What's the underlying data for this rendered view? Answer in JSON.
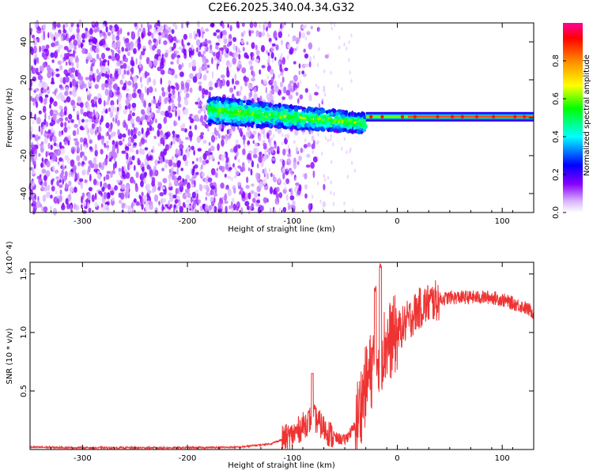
{
  "title": "C2E6.2025.340.04.34.G32",
  "chart_data": [
    {
      "type": "heatmap",
      "xlabel": "Height of straight line (km)",
      "ylabel": "Frequency (Hz)",
      "xlim": [
        -350,
        130
      ],
      "ylim": [
        -50,
        50
      ],
      "xticks": [
        -300,
        -200,
        -100,
        0,
        100
      ],
      "yticks": [
        -40,
        -20,
        0,
        20,
        40
      ],
      "grid": false,
      "colorbar": {
        "label": "Normalized spectral amplitude",
        "range": [
          0.0,
          1.0
        ],
        "ticks": [
          "0.0",
          "0.2",
          "0.4",
          "0.6",
          "0.8"
        ],
        "colormap": [
          "#ffffff",
          "#d9b3ff",
          "#8800ff",
          "#0000ff",
          "#00ffff",
          "#00ff00",
          "#ffff00",
          "#ff8800",
          "#ff0000",
          "#ff00aa"
        ]
      },
      "features": {
        "noise_region_x": [
          -350,
          -125
        ],
        "broad_band_x": [
          -180,
          -30
        ],
        "broad_band_center_hz": [
          4,
          -6
        ],
        "narrow_line_x": [
          -30,
          130
        ],
        "narrow_line_center_hz": 0.5,
        "narrow_line_peak": 0.9
      }
    },
    {
      "type": "line",
      "xlabel": "Height of straight line (km)",
      "ylabel": "SNR (10 * v/v)",
      "y_multiplier": "(x10^4)",
      "xlim": [
        -350,
        130
      ],
      "ylim": [
        0,
        1.6
      ],
      "xticks": [
        -300,
        -200,
        -100,
        0,
        100
      ],
      "yticks": [
        0.5,
        1.0,
        1.5
      ],
      "grid": false,
      "color": "#ee3333",
      "series": [
        {
          "x": [
            -350,
            -300,
            -250,
            -200,
            -150,
            -120,
            -100,
            -90,
            -80,
            -70,
            -60,
            -50,
            -40,
            -30,
            -20,
            -10,
            0,
            10,
            20,
            30,
            40,
            50,
            60,
            70,
            80,
            90,
            100,
            110,
            120,
            130
          ],
          "values": [
            0.02,
            0.015,
            0.015,
            0.015,
            0.02,
            0.05,
            0.12,
            0.2,
            0.28,
            0.18,
            0.1,
            0.08,
            0.2,
            0.55,
            0.8,
            0.9,
            1.0,
            1.1,
            1.2,
            1.25,
            1.28,
            1.3,
            1.3,
            1.3,
            1.3,
            1.3,
            1.28,
            1.25,
            1.22,
            1.17
          ]
        }
      ]
    }
  ]
}
